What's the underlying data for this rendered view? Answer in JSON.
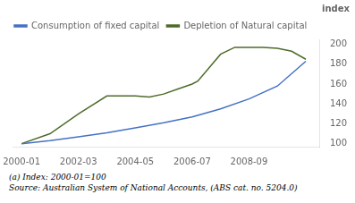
{
  "chart_data": {
    "type": "line",
    "ylabel": "index",
    "xlim": [
      -0.3,
      10.5
    ],
    "xticks": [
      {
        "value": 0,
        "label": "2000-01"
      },
      {
        "value": 2,
        "label": "2002-03"
      },
      {
        "value": 4,
        "label": "2004-05"
      },
      {
        "value": 6,
        "label": "2006-07"
      },
      {
        "value": 8,
        "label": "2008-09"
      }
    ],
    "ylim": [
      97,
      205
    ],
    "yticks": [
      100,
      120,
      140,
      160,
      180,
      200
    ],
    "series": [
      {
        "name": "Consumption of fixed capital",
        "color": "#4472C4",
        "x": [
          0,
          1,
          2,
          3,
          4,
          5,
          6,
          7,
          8,
          9,
          10
        ],
        "values": [
          100,
          103,
          107,
          111,
          116,
          121,
          127,
          135,
          145,
          158,
          183
        ]
      },
      {
        "name": "Depletion of Natural capital",
        "color": "#4E6B2A",
        "x": [
          0,
          1,
          2,
          3,
          4,
          4.5,
          5,
          5.5,
          6,
          6.2,
          7,
          7.5,
          8,
          8.5,
          9,
          9.5,
          10
        ],
        "values": [
          100,
          110,
          130,
          148,
          148,
          147,
          150,
          155,
          160,
          163,
          190,
          197,
          197,
          197,
          196,
          193,
          185
        ]
      }
    ],
    "annotations": [
      "(a) Index: 2000-01=100",
      "Source: Australian System of National Accounts, (ABS cat. no. 5204.0)"
    ],
    "legend": "upper left",
    "grid": false
  }
}
